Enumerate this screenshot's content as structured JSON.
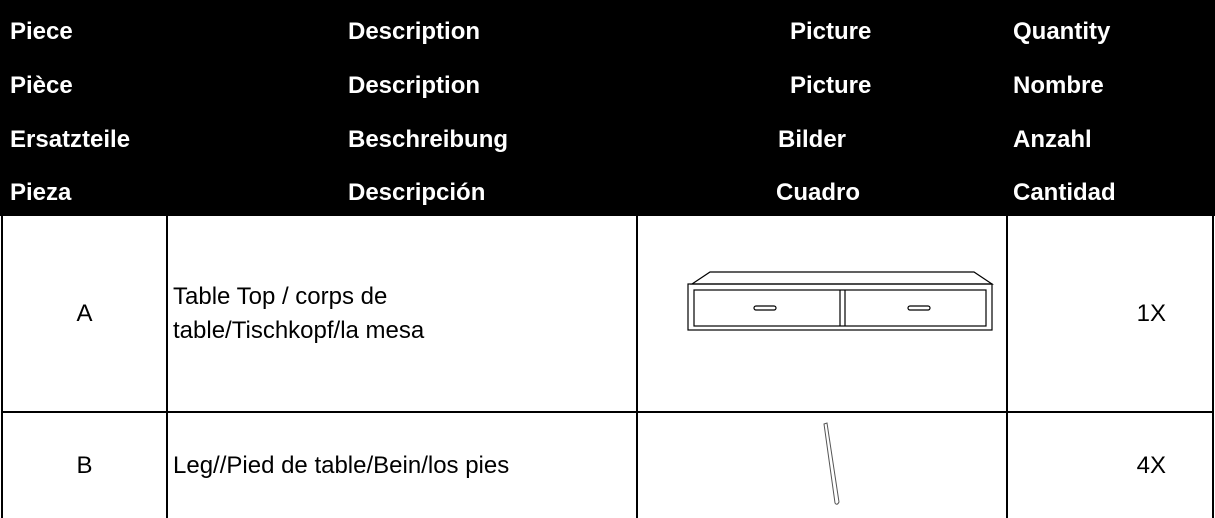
{
  "header": {
    "rows": [
      [
        "Piece",
        "Description",
        "Picture",
        "Quantity"
      ],
      [
        "Pièce",
        "Description",
        "Picture",
        "Nombre"
      ],
      [
        "Ersatzteile",
        "Beschreibung",
        "Bilder",
        "Anzahl"
      ],
      [
        "Pieza",
        "Descripción",
        "Cuadro",
        "Cantidad"
      ]
    ]
  },
  "table": {
    "rows": [
      [
        "A",
        "Table Top / corps de table/Tischkopf/la mesa",
        "1X"
      ],
      [
        "B",
        "Leg//Pied de table/Bein/los pies",
        "4X"
      ]
    ]
  }
}
